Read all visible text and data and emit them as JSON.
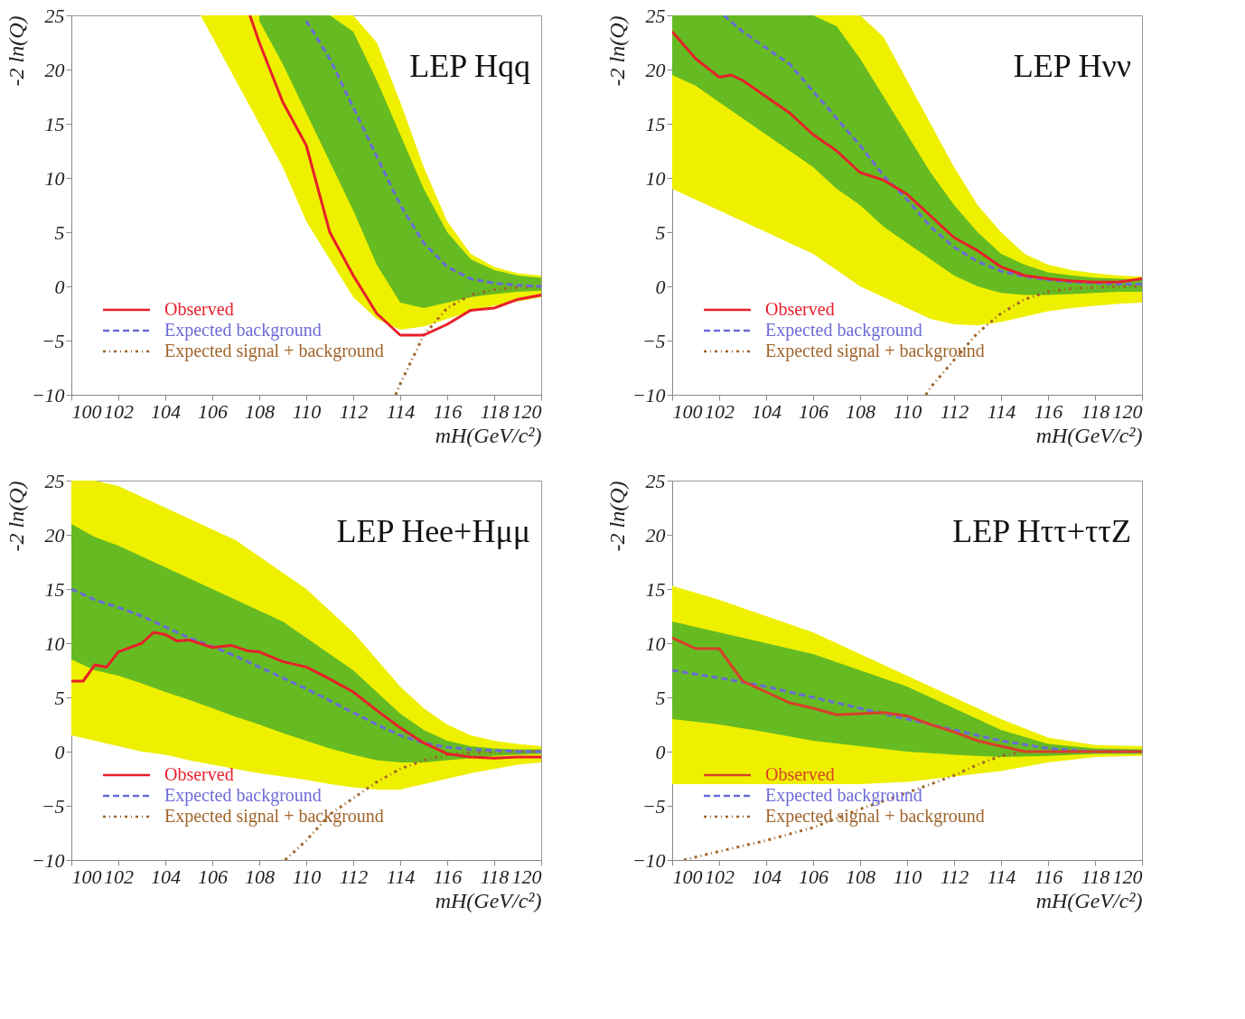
{
  "chart_data": [
    {
      "type": "line",
      "xlabel": "mH(GeV/c²)",
      "ylabel": "-2 ln(Q)",
      "xlim": [
        100,
        120
      ],
      "ylim": [
        -10,
        25
      ],
      "xticks": [
        100,
        102,
        104,
        106,
        108,
        110,
        112,
        114,
        116,
        118,
        120
      ],
      "yticks": [
        -10,
        -5,
        0,
        5,
        10,
        15,
        20,
        25
      ],
      "annotations": [
        "LEP Hqq"
      ],
      "legend": "bottom left",
      "marker": "none",
      "series": [
        {
          "color": "#eef000",
          "x": [
            105.5,
            106,
            107,
            108,
            109,
            110,
            111,
            112,
            113,
            114,
            115,
            116,
            117,
            118,
            119,
            120
          ],
          "values": [
            null,
            null,
            null,
            null,
            null,
            null,
            null,
            null,
            null,
            null,
            null,
            null,
            null,
            null,
            null,
            null
          ],
          "lower": [
            25,
            23,
            19,
            15,
            11,
            6,
            2.5,
            -1,
            -3,
            -4,
            -3.7,
            -3,
            -2.3,
            -1.8,
            -1.4,
            -1
          ],
          "upper": [
            25,
            25,
            25,
            25,
            25,
            25,
            25,
            25,
            22.5,
            17,
            11,
            6,
            3,
            1.8,
            1.2,
            1
          ]
        },
        {
          "color": "#66bb22",
          "x": [
            108,
            109,
            110,
            111,
            112,
            113,
            114,
            115,
            116,
            117,
            118,
            119,
            120
          ],
          "values": [
            null,
            null,
            null,
            null,
            null,
            null,
            null,
            null,
            null,
            null,
            null,
            null,
            null
          ],
          "lower": [
            24.5,
            20.5,
            16,
            11.5,
            7,
            2,
            -1.5,
            -2,
            -1.5,
            -1,
            -0.7,
            -0.5,
            -0.4
          ],
          "upper": [
            25,
            25,
            25,
            25,
            23.5,
            19,
            14,
            9,
            5,
            2.5,
            1.5,
            1,
            0.8
          ]
        },
        {
          "name": "Observed",
          "color": "#e8202a",
          "line_style": "solid",
          "x": [
            107.6,
            108,
            109,
            110,
            111,
            112,
            113,
            114,
            115,
            116,
            117,
            118,
            119,
            120
          ],
          "values": [
            25,
            22.5,
            17,
            13,
            5,
            1,
            -2.5,
            -4.5,
            -4.5,
            -3.5,
            -2.2,
            -2,
            -1.2,
            -0.8
          ]
        },
        {
          "name": "Expected background",
          "color": "#6b6bd8",
          "line_style": "dashed",
          "x": [
            110,
            111,
            112,
            113,
            114,
            115,
            116,
            117,
            118,
            119,
            120
          ],
          "values": [
            24.5,
            21,
            16.5,
            12,
            7.5,
            4,
            1.8,
            0.7,
            0.3,
            0.1,
            0
          ]
        },
        {
          "name": "Expected signal + background",
          "color": "#a0642a",
          "line_style": "dotted",
          "x": [
            113.8,
            114,
            115,
            116,
            117,
            118,
            119,
            120
          ],
          "values": [
            -10,
            -9,
            -4.5,
            -2,
            -0.8,
            -0.3,
            -0.1,
            0
          ]
        }
      ]
    },
    {
      "type": "line",
      "xlabel": "mH(GeV/c²)",
      "ylabel": "-2 ln(Q)",
      "xlim": [
        100,
        120
      ],
      "ylim": [
        -10,
        25
      ],
      "xticks": [
        100,
        102,
        104,
        106,
        108,
        110,
        112,
        114,
        116,
        118,
        120
      ],
      "yticks": [
        -10,
        -5,
        0,
        5,
        10,
        15,
        20,
        25
      ],
      "annotations": [
        "LEP Hνν"
      ],
      "legend": "bottom left",
      "marker": "none",
      "series": [
        {
          "color": "#eef000",
          "x": [
            100,
            101,
            102,
            103,
            104,
            105,
            106,
            107,
            108,
            109,
            110,
            111,
            112,
            113,
            114,
            115,
            116,
            117,
            118,
            119,
            120
          ],
          "values": [
            null,
            null,
            null,
            null,
            null,
            null,
            null,
            null,
            null,
            null,
            null,
            null,
            null,
            null,
            null,
            null,
            null,
            null,
            null,
            null,
            null
          ],
          "lower": [
            9,
            8,
            7,
            6,
            5,
            4,
            3,
            1.5,
            0,
            -1,
            -2,
            -3,
            -3.5,
            -3.6,
            -3.3,
            -2.8,
            -2.3,
            -2,
            -1.8,
            -1.6,
            -1.5
          ],
          "upper": [
            25,
            25,
            25,
            25,
            25,
            25,
            25,
            25,
            25,
            23,
            19,
            15,
            11,
            7.5,
            5,
            3,
            2,
            1.5,
            1.2,
            1,
            0.9
          ]
        },
        {
          "color": "#66bb22",
          "x": [
            100,
            101,
            102,
            103,
            104,
            105,
            106,
            107,
            108,
            109,
            110,
            111,
            112,
            113,
            114,
            115,
            116,
            117,
            118,
            119,
            120
          ],
          "values": [
            null,
            null,
            null,
            null,
            null,
            null,
            null,
            null,
            null,
            null,
            null,
            null,
            null,
            null,
            null,
            null,
            null,
            null,
            null,
            null,
            null
          ],
          "lower": [
            19.5,
            18.5,
            17,
            15.5,
            14,
            12.5,
            11,
            9,
            7.5,
            5.5,
            4,
            2.5,
            1,
            0,
            -0.6,
            -0.8,
            -0.8,
            -0.7,
            -0.6,
            -0.5,
            -0.5
          ],
          "upper": [
            25,
            25,
            25,
            25,
            25,
            25,
            25,
            24,
            21,
            17.5,
            14,
            10.5,
            7.5,
            5,
            3,
            2,
            1.3,
            1,
            0.8,
            0.7,
            0.6
          ]
        },
        {
          "name": "Observed",
          "color": "#e8202a",
          "line_style": "solid",
          "x": [
            100,
            101,
            102,
            102.5,
            103,
            104,
            105,
            106,
            107,
            108,
            109,
            110,
            111,
            112,
            113,
            114,
            115,
            116,
            117,
            118,
            119,
            120
          ],
          "values": [
            23.5,
            21,
            19.3,
            19.5,
            19,
            17.5,
            16,
            14,
            12.5,
            10.5,
            9.8,
            8.5,
            6.5,
            4.5,
            3.3,
            1.8,
            1,
            0.7,
            0.5,
            0.4,
            0.4,
            0.7
          ]
        },
        {
          "name": "Expected background",
          "color": "#6b6bd8",
          "line_style": "dashed",
          "x": [
            102.2,
            103,
            104,
            105,
            106,
            107,
            108,
            109,
            110,
            111,
            112,
            113,
            114,
            115,
            116,
            117,
            118,
            119,
            120
          ],
          "values": [
            25,
            23.5,
            22,
            20.5,
            18,
            15.5,
            13,
            10.2,
            8,
            5.5,
            3.6,
            2.3,
            1.4,
            0.9,
            0.6,
            0.4,
            0.3,
            0.2,
            0.2
          ]
        },
        {
          "name": "Expected signal + background",
          "color": "#a0642a",
          "line_style": "dotted",
          "x": [
            110.8,
            111,
            112,
            113,
            114,
            115,
            116,
            117,
            118,
            119,
            120
          ],
          "values": [
            -10,
            -9.3,
            -6.8,
            -4.3,
            -2.5,
            -1.2,
            -0.5,
            -0.2,
            -0.1,
            0,
            0
          ]
        }
      ]
    },
    {
      "type": "line",
      "xlabel": "mH(GeV/c²)",
      "ylabel": "-2 ln(Q)",
      "xlim": [
        100,
        120
      ],
      "ylim": [
        -10,
        25
      ],
      "xticks": [
        100,
        102,
        104,
        106,
        108,
        110,
        112,
        114,
        116,
        118,
        120
      ],
      "yticks": [
        -10,
        -5,
        0,
        5,
        10,
        15,
        20,
        25
      ],
      "annotations": [
        "LEP Hee+Hμμ"
      ],
      "legend": "bottom left",
      "marker": "none",
      "series": [
        {
          "color": "#eef000",
          "x": [
            100,
            101,
            102,
            103,
            104,
            105,
            106,
            107,
            108,
            109,
            110,
            111,
            112,
            113,
            114,
            115,
            116,
            117,
            118,
            119,
            120
          ],
          "values": [
            null,
            null,
            null,
            null,
            null,
            null,
            null,
            null,
            null,
            null,
            null,
            null,
            null,
            null,
            null,
            null,
            null,
            null,
            null,
            null,
            null
          ],
          "lower": [
            1.5,
            1,
            0.5,
            0,
            -0.3,
            -0.8,
            -1.2,
            -1.6,
            -2,
            -2.3,
            -2.6,
            -3,
            -3.3,
            -3.5,
            -3.5,
            -3,
            -2.5,
            -2,
            -1.6,
            -1.2,
            -1
          ],
          "upper": [
            25,
            25,
            24.5,
            23.5,
            22.5,
            21.5,
            20.5,
            19.5,
            18,
            16.5,
            15,
            13,
            11,
            8.5,
            6,
            4,
            2.5,
            1.5,
            1,
            0.7,
            0.5
          ]
        },
        {
          "color": "#66bb22",
          "x": [
            100,
            101,
            102,
            103,
            104,
            105,
            106,
            107,
            108,
            109,
            110,
            111,
            112,
            113,
            114,
            115,
            116,
            117,
            118,
            119,
            120
          ],
          "values": [
            null,
            null,
            null,
            null,
            null,
            null,
            null,
            null,
            null,
            null,
            null,
            null,
            null,
            null,
            null,
            null,
            null,
            null,
            null,
            null,
            null
          ],
          "lower": [
            8.5,
            7.5,
            7,
            6.3,
            5.5,
            4.8,
            4,
            3.2,
            2.5,
            1.7,
            1,
            0.3,
            -0.3,
            -0.8,
            -1,
            -1,
            -0.8,
            -0.6,
            -0.4,
            -0.3,
            -0.2
          ],
          "upper": [
            21,
            19.8,
            19,
            18,
            17,
            16,
            15,
            14,
            13,
            12,
            10.5,
            9,
            7.5,
            5.5,
            3.5,
            2,
            1,
            0.5,
            0.3,
            0.2,
            0.2
          ]
        },
        {
          "name": "Observed",
          "color": "#e8202a",
          "line_style": "solid",
          "x": [
            100,
            100.5,
            101,
            101.5,
            102,
            103,
            103.5,
            104,
            104.5,
            105,
            106,
            106.8,
            107.5,
            108,
            109,
            110,
            111,
            112,
            113,
            114,
            115,
            116,
            117,
            118,
            119,
            120
          ],
          "values": [
            6.5,
            6.5,
            8,
            7.8,
            9.2,
            10,
            11,
            10.8,
            10.2,
            10.3,
            9.6,
            9.8,
            9.3,
            9.2,
            8.3,
            7.8,
            6.7,
            5.5,
            3.8,
            2.2,
            0.8,
            -0.2,
            -0.5,
            -0.6,
            -0.5,
            -0.5
          ]
        },
        {
          "name": "Expected background",
          "color": "#6b6bd8",
          "line_style": "dashed",
          "x": [
            100,
            101,
            102,
            103,
            104,
            105,
            106,
            107,
            108,
            109,
            110,
            111,
            112,
            113,
            114,
            115,
            116,
            117,
            118,
            119,
            120
          ],
          "values": [
            15,
            14,
            13.3,
            12.5,
            11.5,
            10.5,
            9.7,
            8.8,
            7.8,
            6.8,
            5.8,
            4.7,
            3.6,
            2.5,
            1.5,
            0.8,
            0.4,
            0.2,
            0.1,
            0,
            0
          ]
        },
        {
          "name": "Expected signal + background",
          "color": "#a0642a",
          "line_style": "dotted",
          "x": [
            109.1,
            110,
            111,
            112,
            113,
            114,
            115,
            116,
            117,
            118,
            119,
            120
          ],
          "values": [
            -10,
            -8.2,
            -5.8,
            -4.3,
            -2.8,
            -1.6,
            -0.8,
            -0.3,
            -0.1,
            0,
            0,
            0
          ]
        }
      ]
    },
    {
      "type": "line",
      "xlabel": "mH(GeV/c²)",
      "ylabel": "-2 ln(Q)",
      "xlim": [
        100,
        120
      ],
      "ylim": [
        -10,
        25
      ],
      "xticks": [
        100,
        102,
        104,
        106,
        108,
        110,
        112,
        114,
        116,
        118,
        120
      ],
      "yticks": [
        -10,
        -5,
        0,
        5,
        10,
        15,
        20,
        25
      ],
      "annotations": [
        "LEP Hττ+ττZ"
      ],
      "legend": "bottom left",
      "marker": "none",
      "series": [
        {
          "color": "#eef000",
          "x": [
            100,
            102,
            104,
            106,
            108,
            110,
            112,
            114,
            116,
            118,
            120
          ],
          "values": [
            null,
            null,
            null,
            null,
            null,
            null,
            null,
            null,
            null,
            null,
            null
          ],
          "lower": [
            -3,
            -3,
            -3,
            -3,
            -3,
            -2.8,
            -2.3,
            -1.8,
            -1,
            -0.5,
            -0.4
          ],
          "upper": [
            15.3,
            14,
            12.5,
            11,
            9,
            7,
            5,
            3,
            1.3,
            0.6,
            0.5
          ]
        },
        {
          "color": "#66bb22",
          "x": [
            100,
            102,
            104,
            106,
            108,
            110,
            112,
            114,
            116,
            118,
            120
          ],
          "values": [
            null,
            null,
            null,
            null,
            null,
            null,
            null,
            null,
            null,
            null,
            null
          ],
          "lower": [
            3,
            2.5,
            1.8,
            1,
            0.5,
            0,
            -0.3,
            -0.5,
            -0.4,
            -0.2,
            -0.2
          ],
          "upper": [
            12,
            11,
            10,
            9,
            7.5,
            6,
            4,
            2,
            0.7,
            0.3,
            0.2
          ]
        },
        {
          "name": "Observed",
          "color": "#d8402a",
          "line_style": "solid",
          "x": [
            100,
            101,
            102,
            103,
            104,
            105,
            106,
            107,
            108,
            109,
            110,
            111,
            112,
            113,
            114,
            115,
            116,
            117,
            118,
            119,
            120
          ],
          "values": [
            10.5,
            9.5,
            9.5,
            6.5,
            5.5,
            4.5,
            4,
            3.4,
            3.5,
            3.6,
            3.3,
            2.5,
            1.8,
            1,
            0.5,
            0,
            0,
            0,
            0,
            0,
            0
          ]
        },
        {
          "name": "Expected background",
          "color": "#6b6bd8",
          "line_style": "dashed",
          "x": [
            100,
            102,
            104,
            106,
            108,
            110,
            112,
            114,
            116,
            118,
            120
          ],
          "values": [
            7.5,
            6.8,
            6,
            5,
            4,
            3,
            2,
            1,
            0.3,
            0,
            0
          ]
        },
        {
          "name": "Expected signal + background",
          "color": "#a0642a",
          "line_style": "dotted",
          "x": [
            100.5,
            102,
            104,
            106,
            108,
            110,
            112,
            113,
            114,
            115
          ],
          "values": [
            -10,
            -9.2,
            -8.2,
            -7,
            -5.3,
            -3.8,
            -2.2,
            -1.2,
            -0.4,
            0
          ]
        }
      ]
    }
  ]
}
